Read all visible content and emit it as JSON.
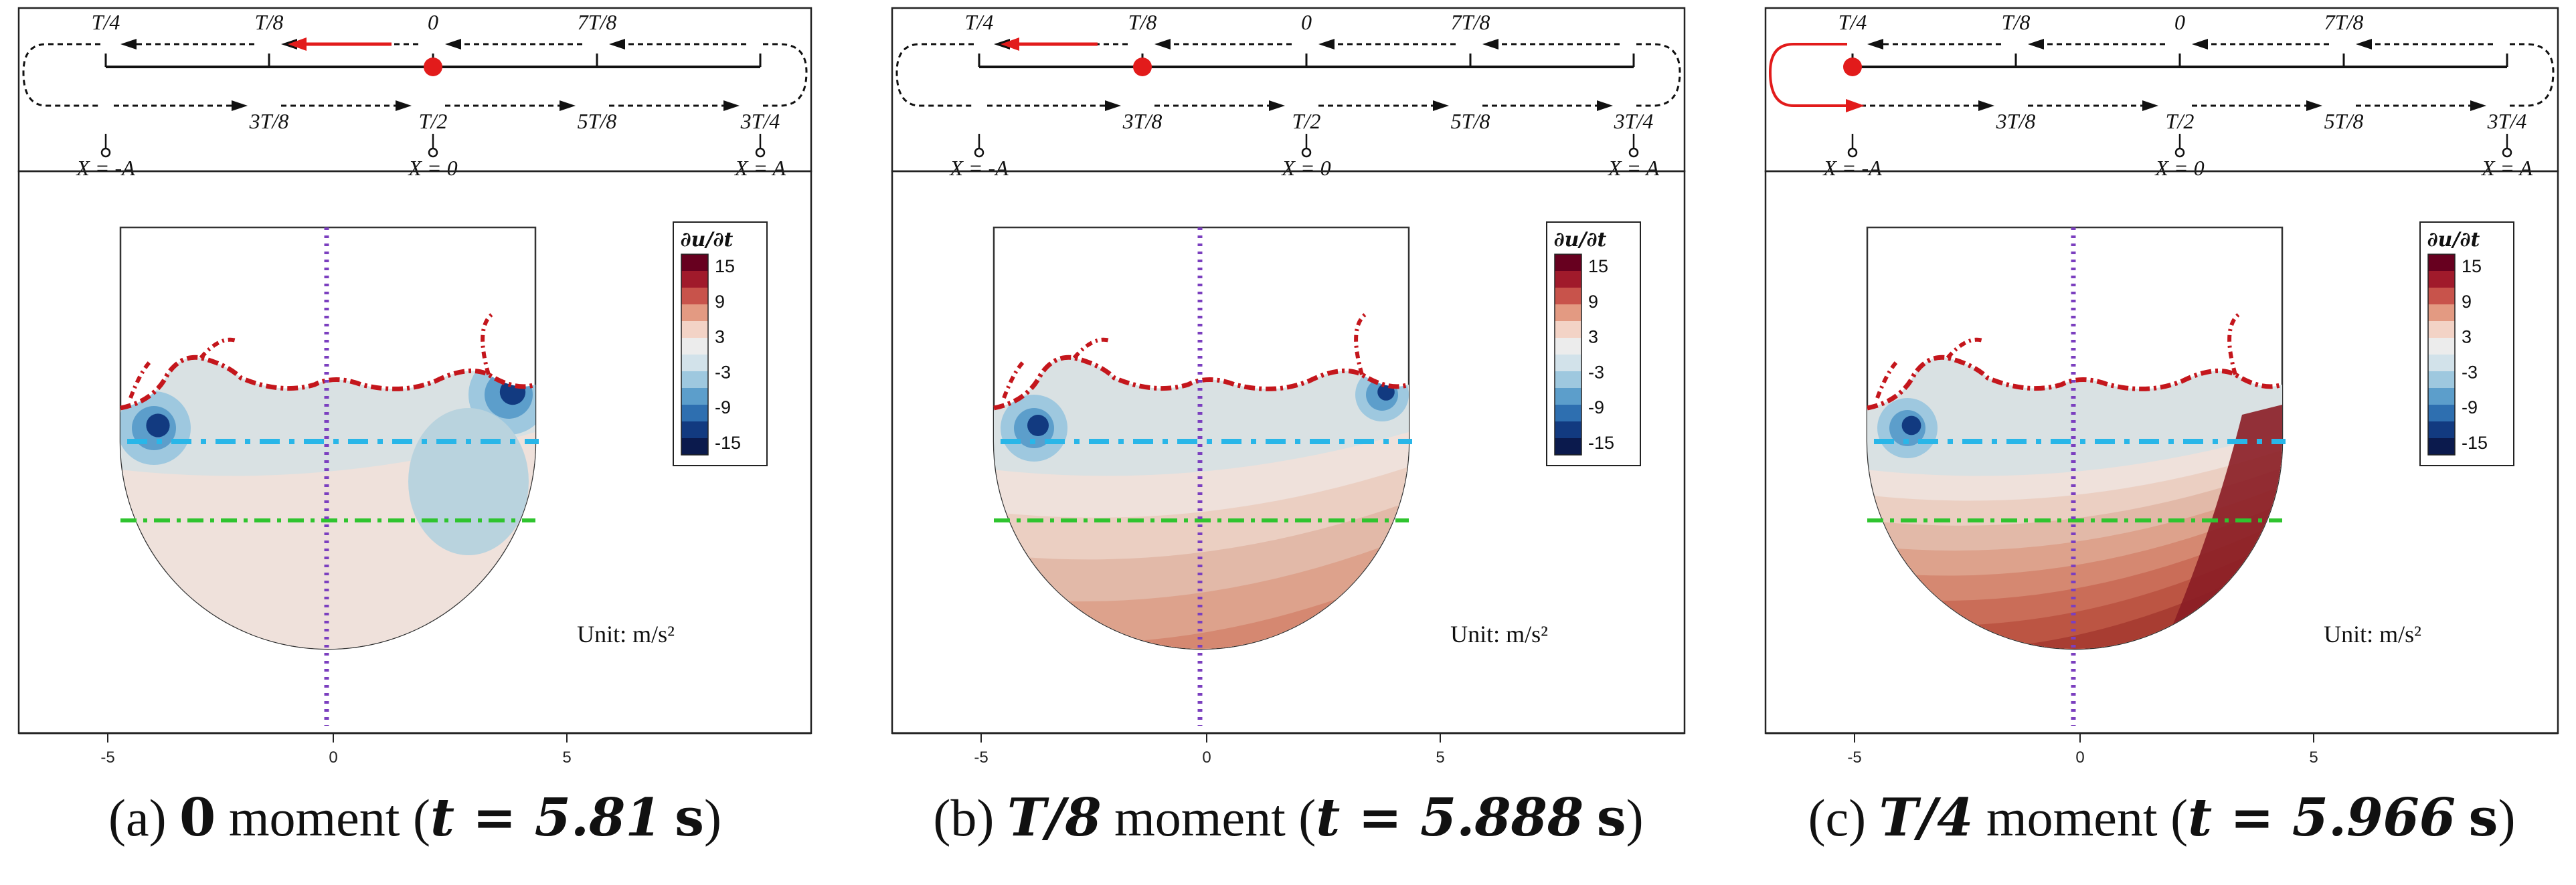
{
  "panels": [
    {
      "id": "a",
      "label": "(a)",
      "moment": "0",
      "moment_word": "moment",
      "time_eq": "t = 5.81",
      "time_unit": "s",
      "field_level": 0.05,
      "marker_position": "0",
      "red_arrow_segment": "T/8 to 0"
    },
    {
      "id": "b",
      "label": "(b)",
      "moment": "T/8",
      "moment_word": "moment",
      "time_eq": "t = 5.888",
      "time_unit": "s",
      "field_level": 0.55,
      "marker_position": "T/8",
      "red_arrow_segment": "T/4 to T/8"
    },
    {
      "id": "c",
      "label": "(c)",
      "moment": "T/4",
      "moment_word": "moment",
      "time_eq": "t = 5.966",
      "time_unit": "s",
      "field_level": 1.0,
      "marker_position": "T/4",
      "red_arrow_segment": "T/4 to 3T/8 (turnaround)"
    }
  ],
  "schematic": {
    "top_labels": [
      "T/4",
      "T/8",
      "0",
      "7T/8"
    ],
    "bottom_labels": [
      "3T/8",
      "T/2",
      "5T/8",
      "3T/4"
    ],
    "position_labels": [
      "X = -A",
      "X = 0",
      "X = A"
    ]
  },
  "colorbar": {
    "title": "∂u/∂t",
    "ticks": [
      "15",
      "9",
      "3",
      "-3",
      "-9",
      "-15"
    ],
    "colors": [
      "#67001f",
      "#a01a2b",
      "#c8534b",
      "#e39a82",
      "#f3d3c6",
      "#ececec",
      "#d2e2ea",
      "#9ec8df",
      "#5c9ecb",
      "#2e6fb0",
      "#123a80",
      "#0b1a4d"
    ]
  },
  "unit_label": "Unit: m/s²",
  "axis_ticks": [
    "-5",
    "0",
    "5"
  ]
}
